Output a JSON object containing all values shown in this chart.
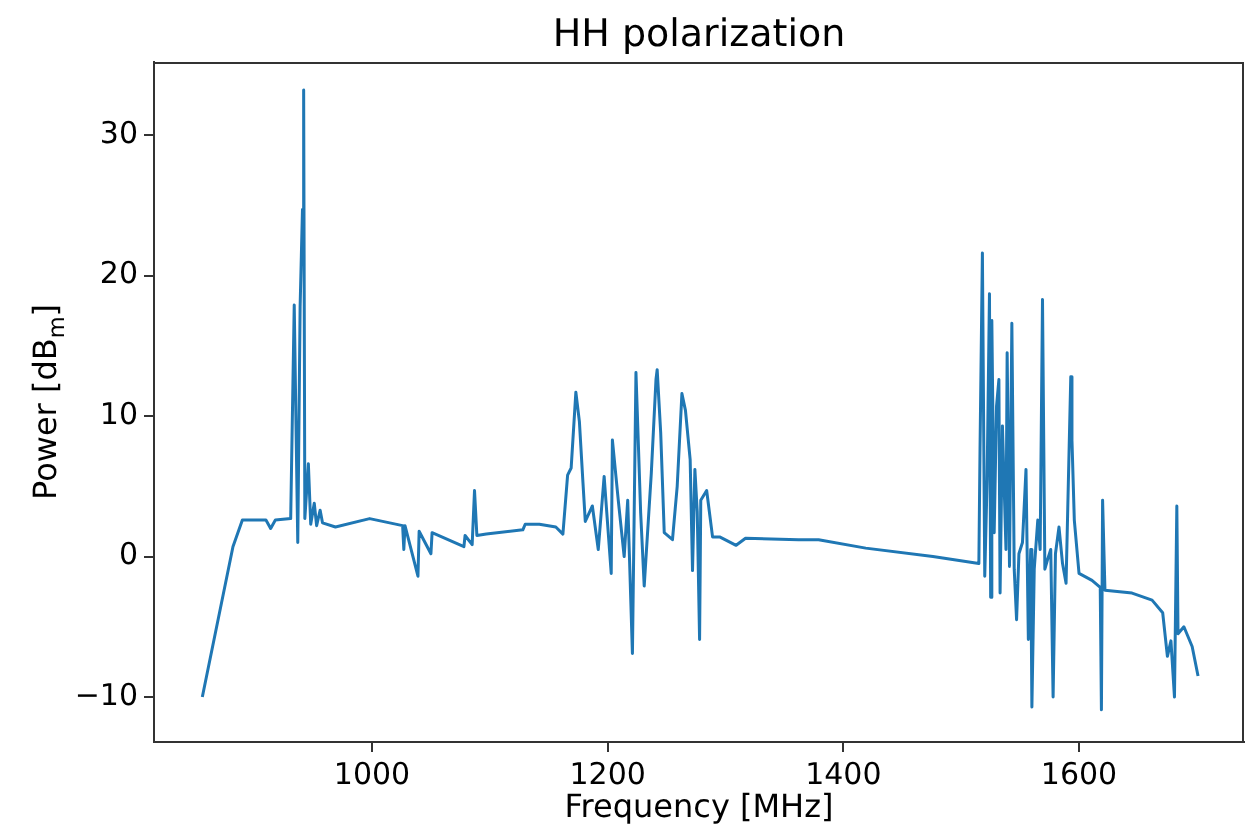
{
  "chart_data": {
    "type": "line",
    "title": "HH polarization",
    "xlabel": "Frequency [MHz]",
    "ylabel": "Power [dB$_{m}$]",
    "xlim": [
      815,
      1740
    ],
    "ylim": [
      -13.2,
      35.2
    ],
    "xticks": [
      1000,
      1200,
      1400,
      1600
    ],
    "yticks": [
      -10,
      0,
      10,
      20,
      30
    ],
    "grid": false,
    "legend": false,
    "marker": "none",
    "line_style": "solid",
    "series": [
      {
        "color": "#1f77b4",
        "x": [
          856,
          882,
          890,
          910,
          914,
          918,
          931,
          934,
          937,
          939,
          941,
          942,
          943,
          946,
          948,
          951,
          953,
          956,
          958,
          969,
          998,
          1026,
          1027,
          1028,
          1039,
          1040,
          1050,
          1051,
          1078,
          1079,
          1085,
          1087,
          1089,
          1097,
          1128,
          1130,
          1142,
          1156,
          1162,
          1166,
          1169,
          1173,
          1176,
          1179,
          1181,
          1187,
          1192,
          1197,
          1203,
          1204,
          1209,
          1214,
          1217,
          1221,
          1224,
          1228,
          1231,
          1237,
          1241,
          1242,
          1245,
          1248,
          1255,
          1259,
          1263,
          1266,
          1270,
          1272,
          1274,
          1276,
          1278,
          1279,
          1284,
          1289,
          1295,
          1309,
          1317,
          1362,
          1379,
          1419,
          1476,
          1515,
          1516,
          1518,
          1520,
          1522,
          1524,
          1525,
          1526,
          1528,
          1530,
          1532,
          1533,
          1535,
          1538,
          1539,
          1541,
          1543,
          1545,
          1547,
          1549,
          1552,
          1555,
          1557,
          1559,
          1560,
          1562,
          1565,
          1567,
          1569,
          1571,
          1573,
          1576,
          1578,
          1580,
          1583,
          1586,
          1589,
          1591,
          1593,
          1594,
          1596,
          1600,
          1611,
          1618,
          1619,
          1620,
          1622,
          1645,
          1662,
          1671,
          1675,
          1678,
          1681,
          1683,
          1684,
          1689,
          1696,
          1701
        ],
        "values": [
          -10,
          0.7,
          2.6,
          2.6,
          2.0,
          2.6,
          2.7,
          17.9,
          1.0,
          17.8,
          24.7,
          33.2,
          2.7,
          6.6,
          2.3,
          3.8,
          2.2,
          3.3,
          2.4,
          2.1,
          2.7,
          2.2,
          0.5,
          2.2,
          -1.4,
          1.8,
          0.2,
          1.7,
          0.7,
          1.5,
          0.85,
          4.7,
          1.5,
          1.6,
          1.9,
          2.3,
          2.3,
          2.1,
          1.6,
          5.8,
          6.3,
          11.7,
          9.6,
          5.3,
          2.5,
          3.6,
          0.5,
          5.7,
          -1.2,
          8.3,
          4.0,
          0,
          4.0,
          -6.9,
          13.1,
          3.1,
          -2.1,
          5.9,
          12.6,
          13.3,
          8.8,
          1.7,
          1.2,
          5.0,
          11.6,
          10.4,
          6.9,
          -1.0,
          6.2,
          3.2,
          -5.9,
          4.0,
          4.7,
          1.4,
          1.4,
          0.8,
          1.3,
          1.2,
          1.2,
          0.6,
          0,
          -0.5,
          7.8,
          21.6,
          -1.4,
          5.5,
          18.7,
          -2.9,
          16.8,
          1.7,
          10.7,
          12.6,
          -2.6,
          9.3,
          0.5,
          14.5,
          -0.7,
          16.6,
          -0.9,
          -4.5,
          0.2,
          1.0,
          6.2,
          -5.9,
          0.5,
          -10.7,
          -0.9,
          2.6,
          0.5,
          18.3,
          -0.9,
          -0.3,
          0.5,
          -10,
          0.2,
          2.1,
          -0.5,
          -1.9,
          5.5,
          12.8,
          8.3,
          2.6,
          -1.2,
          -1.7,
          -2.2,
          -10.9,
          4.0,
          -2.4,
          -2.6,
          -3.1,
          -4.0,
          -7.1,
          -6.0,
          -10,
          3.6,
          -5.5,
          -5.0,
          -6.4,
          -8.5
        ]
      }
    ]
  }
}
